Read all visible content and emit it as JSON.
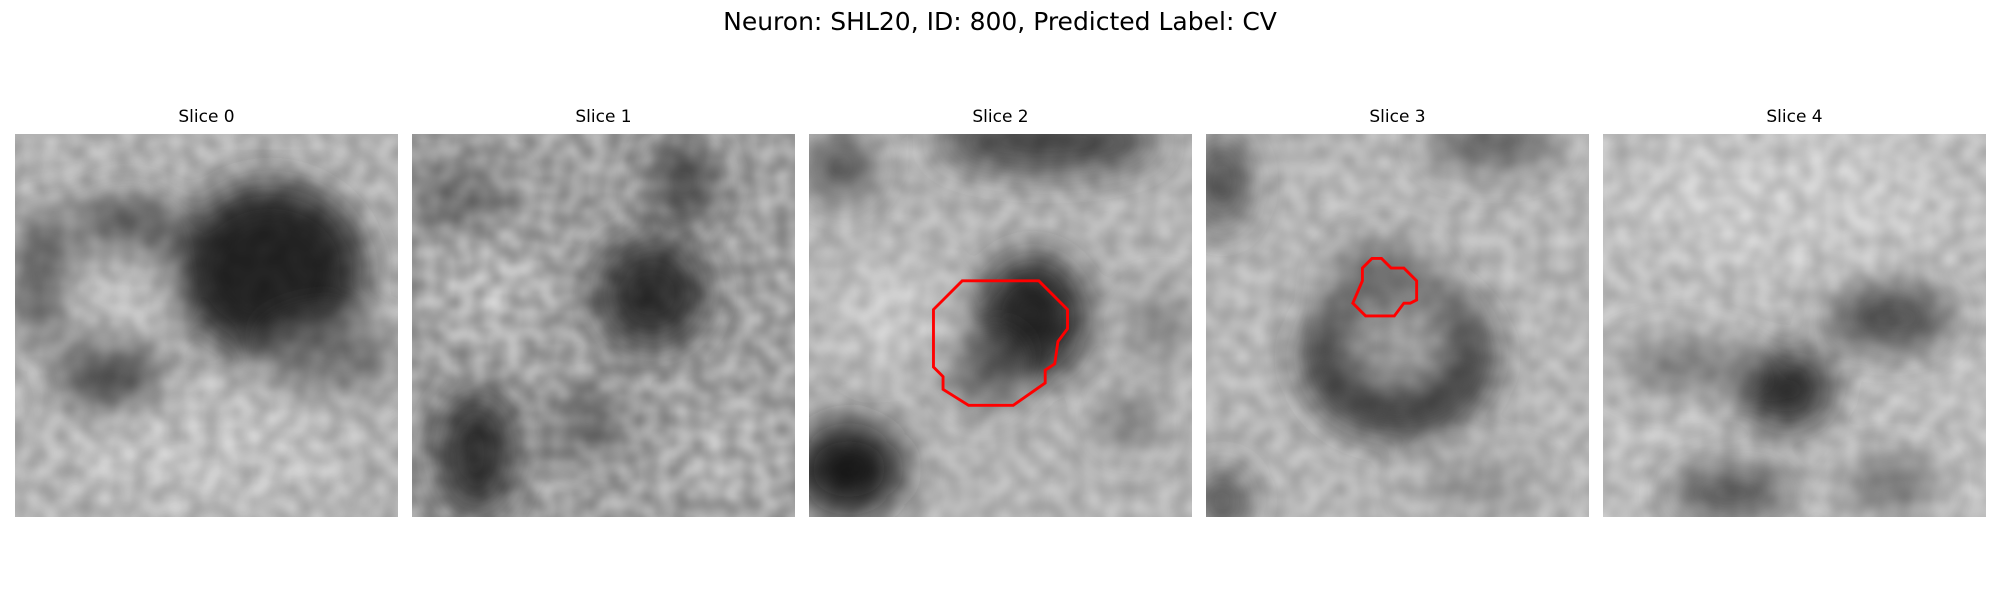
{
  "figure": {
    "title": "Neuron: SHL20, ID: 800, Predicted Label: CV"
  },
  "panels": [
    {
      "title": "Slice 0"
    },
    {
      "title": "Slice 1"
    },
    {
      "title": "Slice 2"
    },
    {
      "title": "Slice 3"
    },
    {
      "title": "Slice 4"
    }
  ],
  "colors": {
    "contour": "#ff0000",
    "colormap": "gray"
  }
}
